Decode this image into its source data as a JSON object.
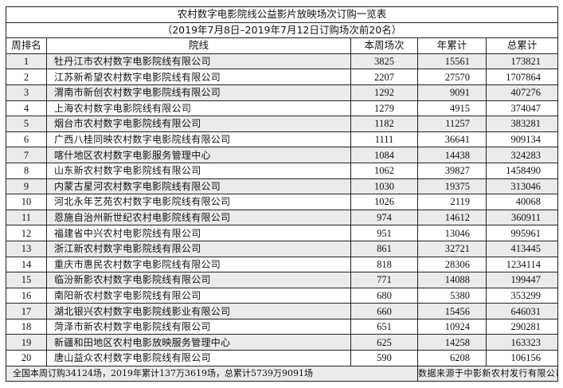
{
  "title": "农村数字电影院线公益影片放映场次订购一览表",
  "subtitle": "（2019年7月8日–2019年7月12日订购场次前20名）",
  "headers": [
    "周排名",
    "院线",
    "本周场次",
    "年累计",
    "总累计"
  ],
  "rows": [
    [
      "1",
      "牡丹江市农村数字电影院线有限公司",
      "3825",
      "15561",
      "173821"
    ],
    [
      "2",
      "江苏新希望农村数字电影院线有限公司",
      "2207",
      "27570",
      "1707864"
    ],
    [
      "3",
      "渭南市新创农村数字电影院线有限公司",
      "1292",
      "9091",
      "407276"
    ],
    [
      "4",
      "上海农村数字电影院线有限公司",
      "1279",
      "4915",
      "374047"
    ],
    [
      "5",
      "烟台市农村数字电影院线有限公司",
      "1182",
      "11257",
      "383281"
    ],
    [
      "6",
      "广西八桂同映农村数字电影院线有限公司",
      "1111",
      "36641",
      "909134"
    ],
    [
      "7",
      "喀什地区农村数字电影服务管理中心",
      "1084",
      "14438",
      "324283"
    ],
    [
      "8",
      "山东新农村数字电影院线有限公司",
      "1062",
      "39827",
      "1458490"
    ],
    [
      "9",
      "内蒙古星河农村数字电影院线有限公司",
      "1030",
      "19375",
      "313046"
    ],
    [
      "10",
      "河北永年艺苑农村数字电影院线有限公司",
      "1026",
      "2119",
      "40068"
    ],
    [
      "11",
      "恩施自治州新世纪农村电影院线有限公司",
      "974",
      "14612",
      "360911"
    ],
    [
      "12",
      "福建省中兴农村电影院线有限公司",
      "951",
      "13046",
      "995961"
    ],
    [
      "13",
      "浙江新农村数字电影院线有限公司",
      "861",
      "32721",
      "413445"
    ],
    [
      "14",
      "重庆市惠民农村数字电影院线有限公司",
      "818",
      "28306",
      "1234114"
    ],
    [
      "15",
      "临汾新影农村数字电影院线有限公司",
      "771",
      "14088",
      "199447"
    ],
    [
      "16",
      "南阳新农村数字电影院线有限公司",
      "680",
      "5380",
      "353299"
    ],
    [
      "17",
      "湖北银兴农村数字电影院线影业有限公司",
      "660",
      "15456",
      "646031"
    ],
    [
      "18",
      "菏泽市新农村数字电影院线有限公司",
      "651",
      "10924",
      "290281"
    ],
    [
      "19",
      "新疆和田地区农村电影放映服务管理中心",
      "625",
      "14258",
      "163323"
    ],
    [
      "20",
      "唐山益众农村数字电影院线有限公司",
      "590",
      "6208",
      "106156"
    ]
  ],
  "footer": {
    "summary": "全国本周订购34124场，2019年累计137万3619场，总累计5739万9091场",
    "source": "数据来源于中影新农村发行有限公司"
  },
  "colors": {
    "alt_row": "#ebebeb",
    "border": "#222222"
  }
}
